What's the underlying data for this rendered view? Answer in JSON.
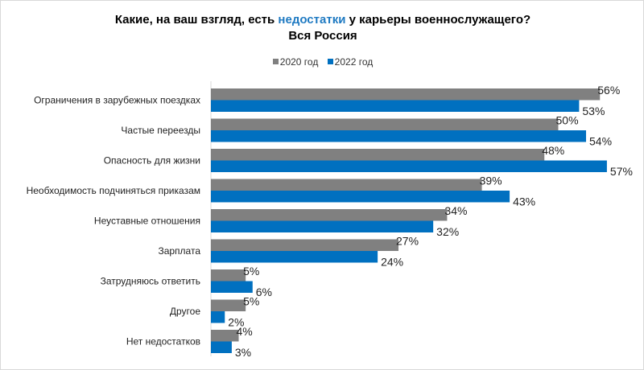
{
  "chart_data": {
    "type": "bar",
    "orientation": "horizontal",
    "title_parts": [
      "Какие, на ваш взгляд, есть ",
      "недостатки",
      " у карьеры военнослужащего?"
    ],
    "subtitle": "Вся Россия",
    "categories": [
      "Ограничения в зарубежных поездках",
      "Частые переезды",
      "Опасность для жизни",
      "Необходимость  подчиняться приказам",
      "Неуставные отношения",
      "Зарплата",
      "Затрудняюсь ответить",
      "Другое",
      "Нет  недостатков"
    ],
    "series": [
      {
        "name": "2020 год",
        "color": "#808080",
        "values": [
          56,
          50,
          48,
          39,
          34,
          27,
          5,
          5,
          4
        ]
      },
      {
        "name": "2022 год",
        "color": "#0070c0",
        "values": [
          53,
          54,
          57,
          43,
          32,
          24,
          6,
          2,
          3
        ]
      }
    ],
    "value_suffix": "%",
    "xlim": [
      0,
      60
    ],
    "grid": false,
    "legend_position": "top",
    "highlight_color": "#1f7ac2"
  }
}
